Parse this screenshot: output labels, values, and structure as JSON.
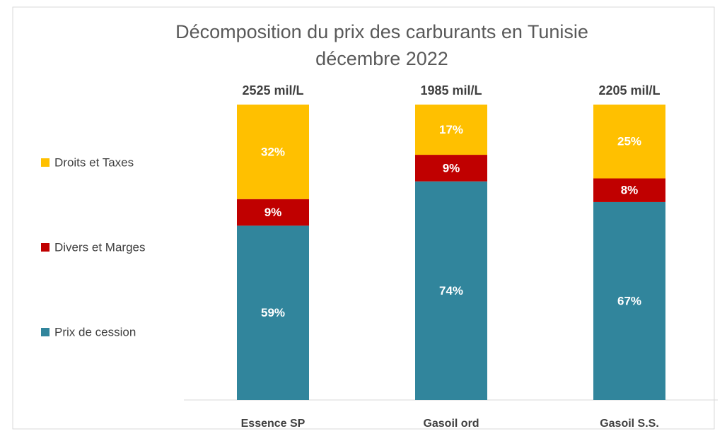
{
  "chart_data": {
    "type": "stacked_bar",
    "title": [
      "Décomposition du prix des carburants en Tunisie",
      "décembre 2022"
    ],
    "categories": [
      "Essence SP",
      "Gasoil ord",
      "Gasoil S.S."
    ],
    "annotations": [
      "2525 mil/L",
      "1985 mil/L",
      "2205 mil/L"
    ],
    "series": [
      {
        "name": "Prix de cession",
        "color": "#31859c",
        "values": [
          59,
          74,
          67
        ],
        "value_labels": [
          "59%",
          "74%",
          "67%"
        ]
      },
      {
        "name": "Divers et Marges",
        "color": "#c00000",
        "values": [
          9,
          9,
          8
        ],
        "value_labels": [
          "9%",
          "9%",
          "8%"
        ]
      },
      {
        "name": "Droits et Taxes",
        "color": "#ffc000",
        "values": [
          32,
          17,
          25
        ],
        "value_labels": [
          "32%",
          "17%",
          "25%"
        ]
      }
    ]
  }
}
